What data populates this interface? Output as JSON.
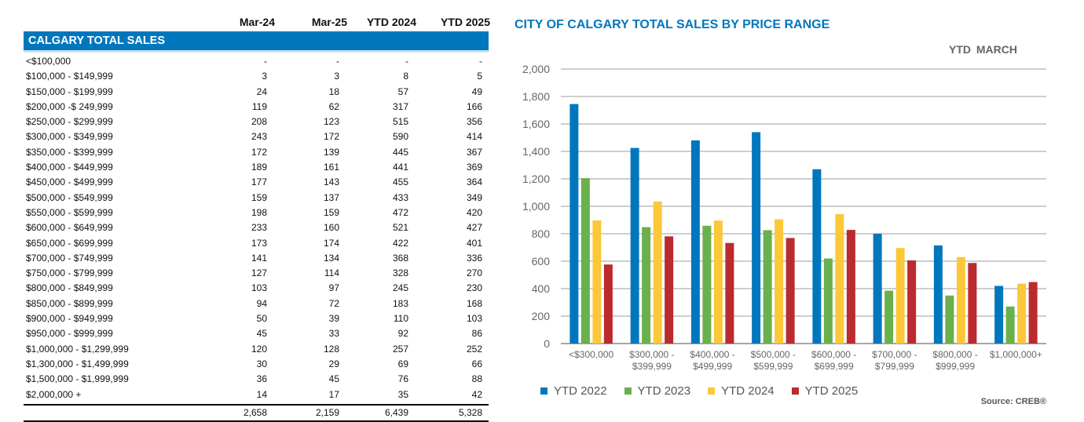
{
  "table": {
    "headers": [
      "Mar-24",
      "Mar-25",
      "YTD 2024",
      "YTD 2025"
    ],
    "section": "CALGARY TOTAL SALES",
    "rows": [
      {
        "label": "<$100,000",
        "v": [
          "-",
          "-",
          "-",
          "-"
        ]
      },
      {
        "label": "$100,000 - $149,999",
        "v": [
          "3",
          "3",
          "8",
          "5"
        ]
      },
      {
        "label": "$150,000 - $199,999",
        "v": [
          "24",
          "18",
          "57",
          "49"
        ]
      },
      {
        "label": "$200,000 -$ 249,999",
        "v": [
          "119",
          "62",
          "317",
          "166"
        ]
      },
      {
        "label": "$250,000 - $299,999",
        "v": [
          "208",
          "123",
          "515",
          "356"
        ]
      },
      {
        "label": "$300,000 - $349,999",
        "v": [
          "243",
          "172",
          "590",
          "414"
        ]
      },
      {
        "label": "$350,000 - $399,999",
        "v": [
          "172",
          "139",
          "445",
          "367"
        ]
      },
      {
        "label": "$400,000 - $449,999",
        "v": [
          "189",
          "161",
          "441",
          "369"
        ]
      },
      {
        "label": "$450,000 - $499,999",
        "v": [
          "177",
          "143",
          "455",
          "364"
        ]
      },
      {
        "label": "$500,000 - $549,999",
        "v": [
          "159",
          "137",
          "433",
          "349"
        ]
      },
      {
        "label": "$550,000 - $599,999",
        "v": [
          "198",
          "159",
          "472",
          "420"
        ]
      },
      {
        "label": "$600,000 - $649,999",
        "v": [
          "233",
          "160",
          "521",
          "427"
        ]
      },
      {
        "label": "$650,000 - $699,999",
        "v": [
          "173",
          "174",
          "422",
          "401"
        ]
      },
      {
        "label": "$700,000 - $749,999",
        "v": [
          "141",
          "134",
          "368",
          "336"
        ]
      },
      {
        "label": "$750,000 - $799,999",
        "v": [
          "127",
          "114",
          "328",
          "270"
        ]
      },
      {
        "label": "$800,000 - $849,999",
        "v": [
          "103",
          "97",
          "245",
          "230"
        ]
      },
      {
        "label": "$850,000 - $899,999",
        "v": [
          "94",
          "72",
          "183",
          "168"
        ]
      },
      {
        "label": "$900,000 - $949,999",
        "v": [
          "50",
          "39",
          "110",
          "103"
        ]
      },
      {
        "label": "$950,000 - $999,999",
        "v": [
          "45",
          "33",
          "92",
          "86"
        ]
      },
      {
        "label": "$1,000,000 - $1,299,999",
        "v": [
          "120",
          "128",
          "257",
          "252"
        ]
      },
      {
        "label": "$1,300,000 - $1,499,999",
        "v": [
          "30",
          "29",
          "69",
          "66"
        ]
      },
      {
        "label": "$1,500,000 - $1,999,999",
        "v": [
          "36",
          "45",
          "76",
          "88"
        ]
      },
      {
        "label": "$2,000,000 +",
        "v": [
          "14",
          "17",
          "35",
          "42"
        ]
      }
    ],
    "totals": [
      "2,658",
      "2,159",
      "6,439",
      "5,328"
    ]
  },
  "chart_data": {
    "type": "bar",
    "title": "CITY OF CALGARY TOTAL SALES BY PRICE RANGE",
    "subtitle": "YTD  MARCH",
    "source": "Source: CREB®",
    "categories": [
      [
        "<$300,000"
      ],
      [
        "$300,000 -",
        "$399,999"
      ],
      [
        "$400,000 -",
        "$499,999"
      ],
      [
        "$500,000 -",
        "$599,999"
      ],
      [
        "$600,000 -",
        "$699,999"
      ],
      [
        "$700,000 -",
        "$799,999"
      ],
      [
        "$800,000 -",
        "$999,999"
      ],
      [
        "$1,000,000+"
      ]
    ],
    "ylim": [
      0,
      2000
    ],
    "yticks": [
      "0",
      "200",
      "400",
      "600",
      "800",
      "1,000",
      "1,200",
      "1,400",
      "1,600",
      "1,800",
      "2,000"
    ],
    "grid": true,
    "legend_position": "bottom",
    "series": [
      {
        "name": "YTD  2022",
        "color": "#0077bd",
        "values": [
          1745,
          1425,
          1480,
          1540,
          1270,
          800,
          715,
          420
        ]
      },
      {
        "name": "YTD  2023",
        "color": "#6ab04c",
        "values": [
          1205,
          848,
          858,
          826,
          620,
          385,
          350,
          270
        ]
      },
      {
        "name": "YTD  2024",
        "color": "#fcc83a",
        "values": [
          897,
          1035,
          896,
          905,
          943,
          696,
          630,
          437
        ]
      },
      {
        "name": "YTD  2025",
        "color": "#bb2a2e",
        "values": [
          576,
          781,
          733,
          769,
          828,
          606,
          587,
          448
        ]
      }
    ]
  }
}
